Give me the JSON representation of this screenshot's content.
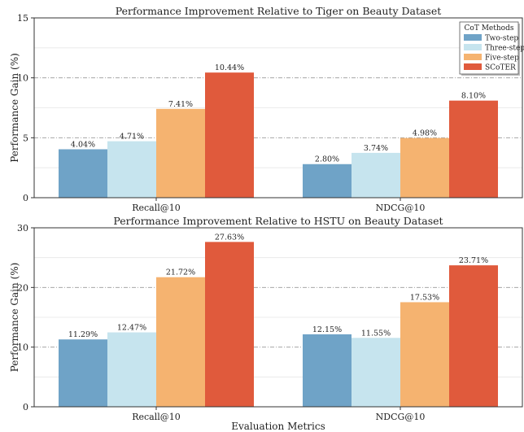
{
  "chart_data": [
    {
      "type": "bar",
      "title": "Performance Improvement Relative to Tiger on Beauty Dataset",
      "ylabel": "Performance Gain (%)",
      "xlabel": "",
      "ylim": [
        0,
        15
      ],
      "yticks": [
        0,
        5,
        10,
        15
      ],
      "grid": true,
      "categories": [
        "Recall@10",
        "NDCG@10"
      ],
      "series": [
        {
          "name": "Two-step",
          "values": [
            4.04,
            2.8
          ],
          "labels": [
            "4.04%",
            "2.80%"
          ]
        },
        {
          "name": "Three-step",
          "values": [
            4.71,
            3.74
          ],
          "labels": [
            "4.71%",
            "3.74%"
          ]
        },
        {
          "name": "Five-step",
          "values": [
            7.41,
            4.98
          ],
          "labels": [
            "7.41%",
            "4.98%"
          ]
        },
        {
          "name": "SCoTER",
          "values": [
            10.44,
            8.1
          ],
          "labels": [
            "10.44%",
            "8.10%"
          ]
        }
      ],
      "legend": {
        "title": "CoT Methods",
        "position": "top-right"
      }
    },
    {
      "type": "bar",
      "title": "Performance Improvement Relative to HSTU on Beauty Dataset",
      "ylabel": "Performance Gain (%)",
      "xlabel": "Evaluation Metrics",
      "ylim": [
        0,
        30
      ],
      "yticks": [
        0,
        10,
        20,
        30
      ],
      "grid": true,
      "categories": [
        "Recall@10",
        "NDCG@10"
      ],
      "series": [
        {
          "name": "Two-step",
          "values": [
            11.29,
            12.15
          ],
          "labels": [
            "11.29%",
            "12.15%"
          ]
        },
        {
          "name": "Three-step",
          "values": [
            12.47,
            11.55
          ],
          "labels": [
            "12.47%",
            "11.55%"
          ]
        },
        {
          "name": "Five-step",
          "values": [
            21.72,
            17.53
          ],
          "labels": [
            "21.72%",
            "17.53%"
          ]
        },
        {
          "name": "SCoTER",
          "values": [
            27.63,
            23.71
          ],
          "labels": [
            "27.63%",
            "23.71%"
          ]
        }
      ]
    }
  ],
  "colors": {
    "Two-step": "#6fa3c7",
    "Three-step": "#c6e4ee",
    "Five-step": "#f5b370",
    "SCoTER": "#e05a3c"
  }
}
